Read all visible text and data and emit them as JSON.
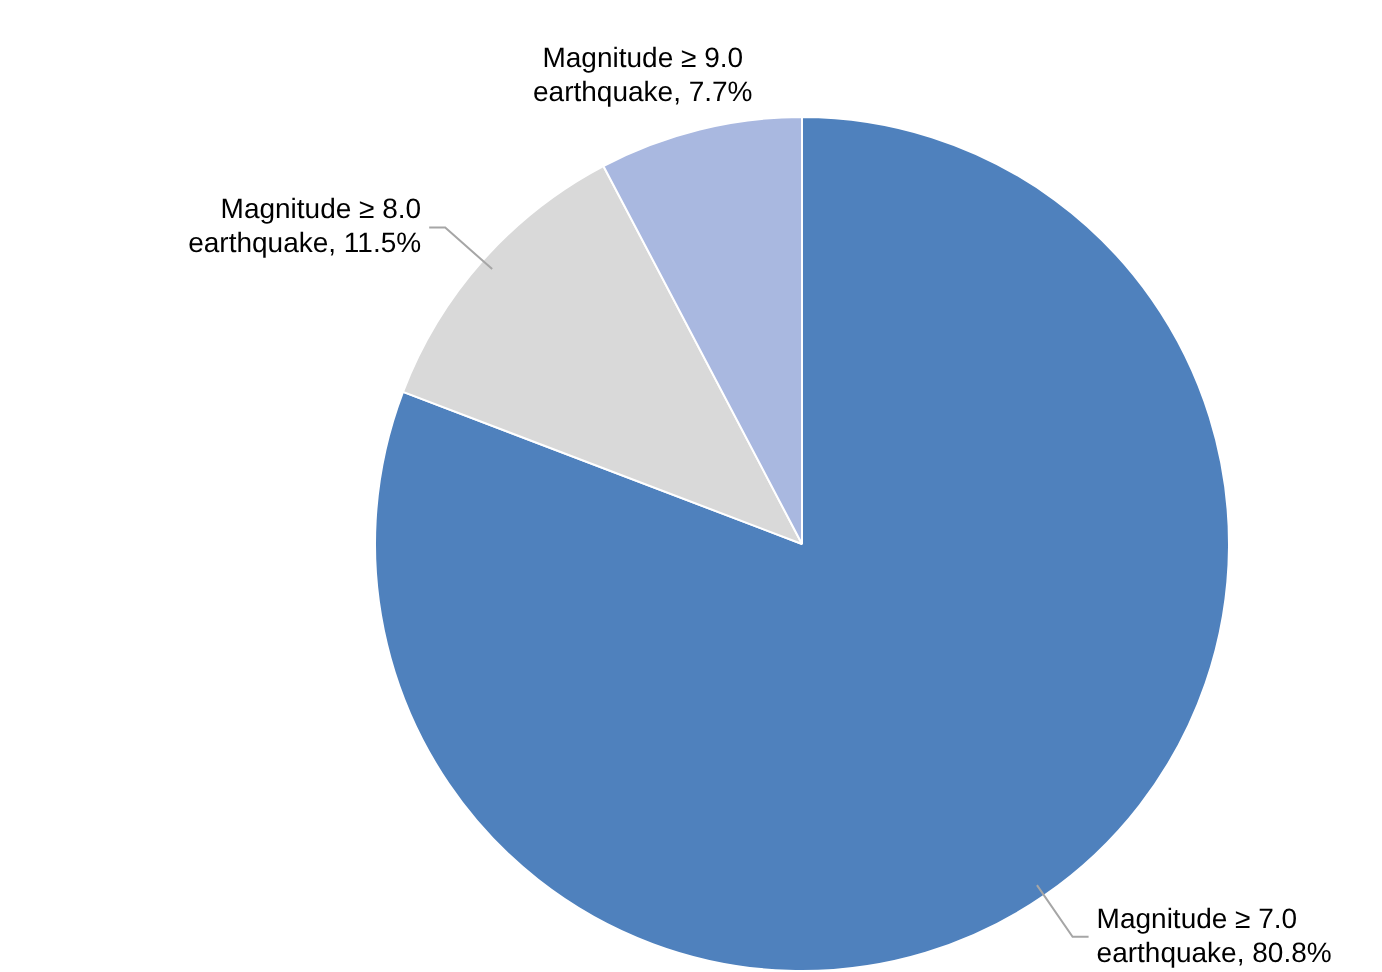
{
  "chart_data": {
    "type": "pie",
    "categories": [
      "Magnitude ≥ 7.0 earthquake",
      "Magnitude ≥ 8.0 earthquake",
      "Magnitude ≥ 9.0 earthquake"
    ],
    "values": [
      80.8,
      11.5,
      7.7
    ],
    "value_labels": [
      "80.8%",
      "11.5%",
      "7.7%"
    ],
    "colors": [
      "#4f81bd",
      "#d9d9d9",
      "#a9b8e0"
    ],
    "legend": false
  }
}
